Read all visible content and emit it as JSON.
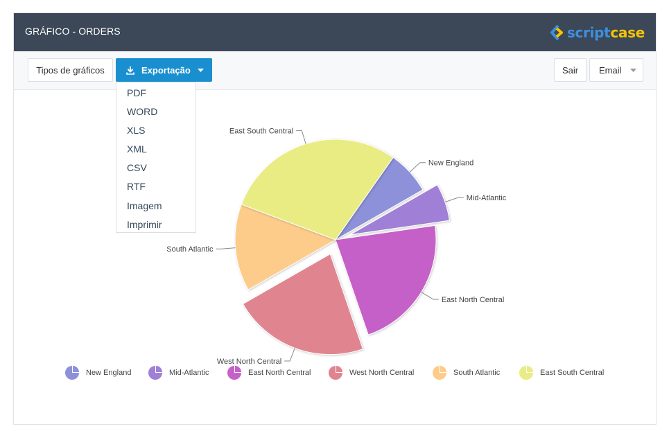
{
  "header": {
    "title": "GRÁFICO - ORDERS",
    "logo_part1": "script",
    "logo_part2": "case"
  },
  "toolbar": {
    "chart_types_label": "Tipos de gráficos",
    "export_label": "Exportação",
    "exit_label": "Sair",
    "email_label": "Email"
  },
  "export_menu": [
    "PDF",
    "WORD",
    "XLS",
    "XML",
    "CSV",
    "RTF",
    "Imagem",
    "Imprimir"
  ],
  "chart_data": {
    "type": "pie",
    "title": "",
    "categories": [
      "New England",
      "Mid-Atlantic",
      "East North Central",
      "West North Central",
      "South Atlantic",
      "East South Central"
    ],
    "values": [
      7,
      6,
      22,
      22,
      14,
      29
    ],
    "exploded": [
      false,
      true,
      false,
      true,
      false,
      false
    ],
    "colors": [
      "#8d91da",
      "#a07fd6",
      "#c661c9",
      "#e0858f",
      "#fdcc8a",
      "#e9ec83"
    ],
    "legend_placement": "bottom"
  }
}
